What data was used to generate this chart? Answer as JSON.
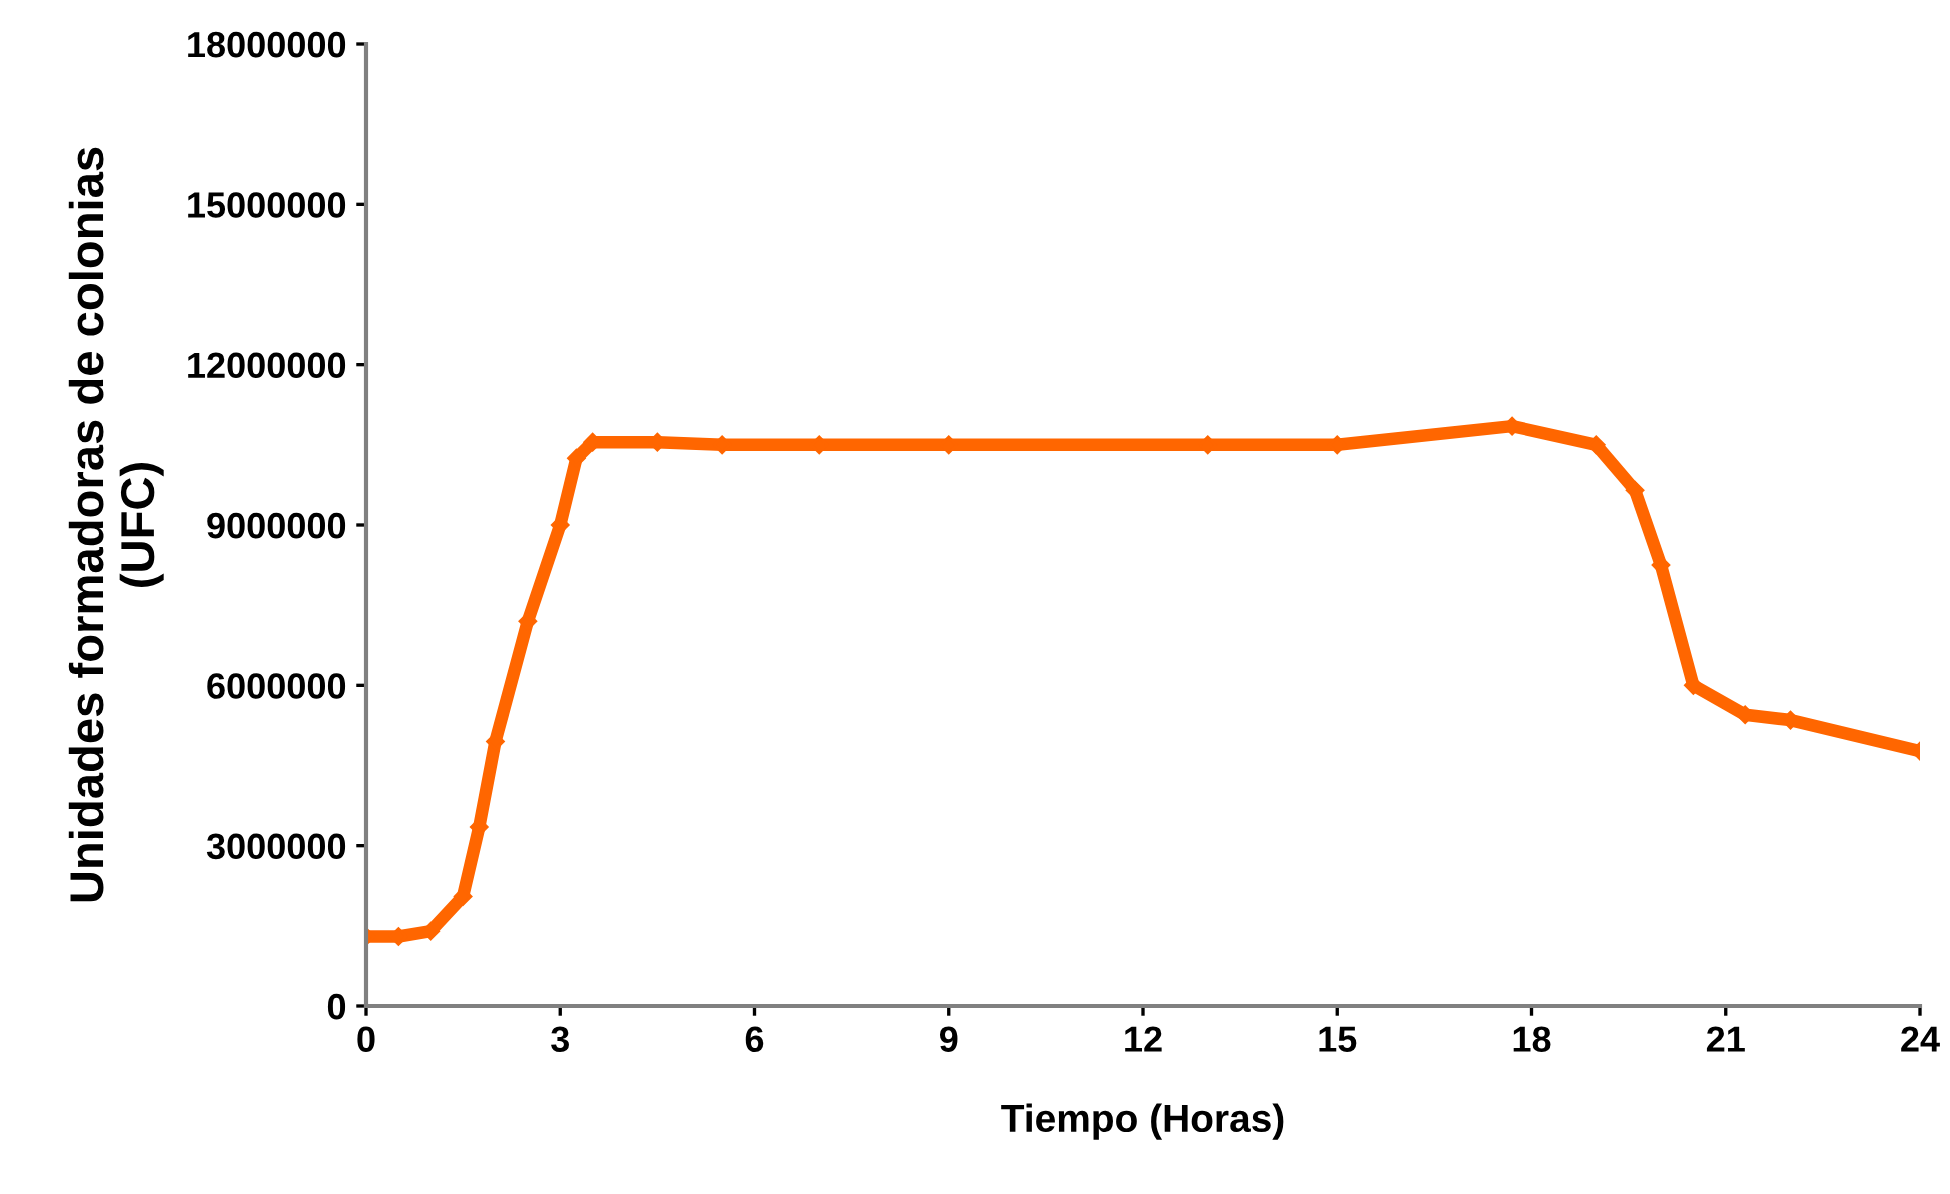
{
  "chart_data": {
    "type": "line",
    "xlabel": "Tiempo (Horas)",
    "ylabel": "Unidades formadoras de colonias\n(UFC)",
    "xlim": [
      0,
      24
    ],
    "xticks": [
      0,
      3,
      6,
      9,
      12,
      15,
      18,
      21,
      24
    ],
    "ylim": [
      0,
      18000000
    ],
    "yticks": [
      0,
      3000000,
      6000000,
      9000000,
      12000000,
      15000000,
      18000000
    ],
    "grid": false,
    "legend": false,
    "marker": "diamond",
    "line_style": "solid",
    "series": [
      {
        "color": "#ff6600",
        "x": [
          0,
          0.5,
          1,
          1.5,
          1.75,
          2,
          2.5,
          3,
          3.25,
          3.5,
          4.5,
          5.5,
          7,
          9,
          13,
          15,
          17.7,
          19,
          19.6,
          20,
          20.5,
          21.3,
          22,
          24
        ],
        "values": [
          1300000,
          1300000,
          1400000,
          2050000,
          3350000,
          4950000,
          7200000,
          9000000,
          10250000,
          10550000,
          10550000,
          10500000,
          10500000,
          10500000,
          10500000,
          10500000,
          10850000,
          10500000,
          9650000,
          8250000,
          6000000,
          5450000,
          5350000,
          4770000
        ]
      }
    ]
  }
}
